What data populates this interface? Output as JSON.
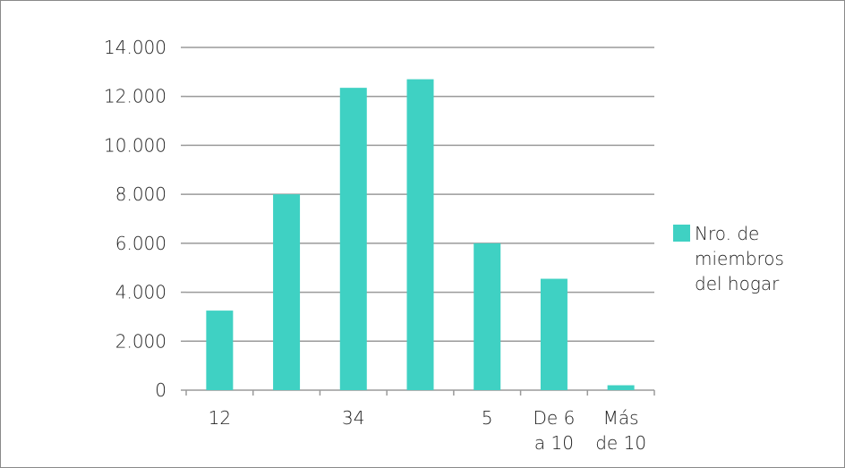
{
  "chart_data": {
    "type": "bar",
    "categories": [
      "12",
      "",
      "34",
      "",
      "5",
      "De 6 a 10",
      "Más de 10"
    ],
    "category_lines": [
      [
        "12"
      ],
      [
        ""
      ],
      [
        "34"
      ],
      [
        ""
      ],
      [
        "5"
      ],
      [
        "De 6",
        "a 10"
      ],
      [
        "Más",
        "de 10"
      ]
    ],
    "series": [
      {
        "name": "Nro. de miembros del hogar",
        "values": [
          3250,
          8000,
          12350,
          12700,
          6000,
          4550,
          200
        ],
        "color": "#3fd1c3"
      }
    ],
    "ylim": [
      0,
      14000
    ],
    "y_ticks": [
      0,
      2000,
      4000,
      6000,
      8000,
      10000,
      12000,
      14000
    ],
    "y_tick_labels": [
      "0",
      "2.000",
      "4.000",
      "6.000",
      "8.000",
      "10.000",
      "12.000",
      "14.000"
    ],
    "grid": true,
    "legend": {
      "position": "right",
      "lines": [
        "Nro. de",
        "miembros",
        "del hogar"
      ]
    }
  }
}
